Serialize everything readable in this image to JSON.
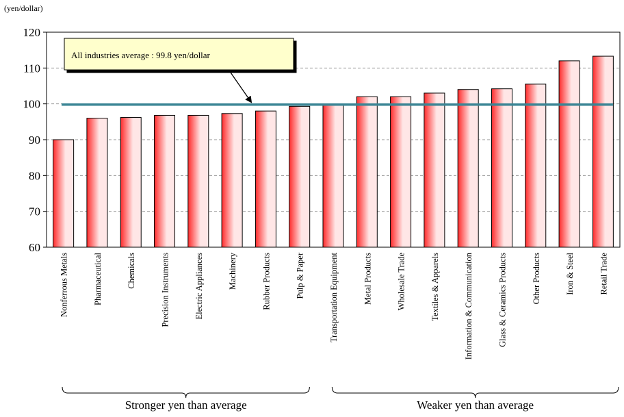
{
  "chart_data": {
    "type": "bar",
    "ylabel": "(yen/dollar)",
    "ylim": [
      60,
      120
    ],
    "yticks": [
      60,
      70,
      80,
      90,
      100,
      110,
      120
    ],
    "grid": true,
    "categories": [
      "Nonferrous Metals",
      "Pharmaceutical",
      "Chemicals",
      "Precision Instruments",
      "Electric Appliances",
      "Machinery",
      "Rubber Products",
      "Pulp & Paper",
      "Transportation Equipment",
      "Metal Products",
      "Wholesale Trade",
      "Textiles & Apparels",
      "Information & Communication",
      "Glass & Ceramics Products",
      "Other Products",
      "Iron & Steel",
      "Retail Trade"
    ],
    "values": [
      90.0,
      96.0,
      96.2,
      96.8,
      96.8,
      97.3,
      98.0,
      99.3,
      99.7,
      102.0,
      102.0,
      103.0,
      104.0,
      104.2,
      105.5,
      112.0,
      113.3
    ],
    "average": {
      "value": 99.8,
      "label": "All industries average : 99.8  yen/dollar"
    },
    "groups": [
      {
        "label": "Stronger yen than average",
        "from": 0,
        "to": 7
      },
      {
        "label": "Weaker yen than average",
        "from": 8,
        "to": 16
      }
    ],
    "colors": {
      "bar_edge": "#ff2b2b",
      "bar_mid": "#ffe6e6",
      "average_line": "#3a8494",
      "callout_fill": "#ffffcc",
      "gridline": "#999999"
    }
  }
}
